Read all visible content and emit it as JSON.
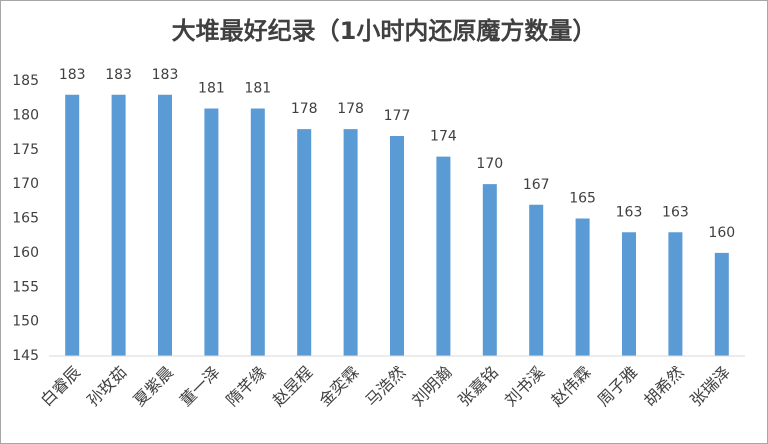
{
  "chart_data": {
    "type": "bar",
    "title": "大堆最好纪录（1小时内还原魔方数量）",
    "categories": [
      "白睿辰",
      "孙玫茹",
      "夏紫晨",
      "董一泽",
      "隋芊缘",
      "赵昱程",
      "金奕霖",
      "马浩然",
      "刘明瀚",
      "张嘉铭",
      "刘书溪",
      "赵伟霖",
      "周子雅",
      "胡希然",
      "张瑞泽"
    ],
    "values": [
      183,
      183,
      183,
      181,
      181,
      178,
      178,
      177,
      174,
      170,
      167,
      165,
      163,
      163,
      160
    ],
    "color": "#5b9bd5",
    "ylim": [
      145,
      185
    ],
    "yticks": [
      145,
      150,
      155,
      160,
      165,
      170,
      175,
      180,
      185
    ],
    "grid": false
  }
}
